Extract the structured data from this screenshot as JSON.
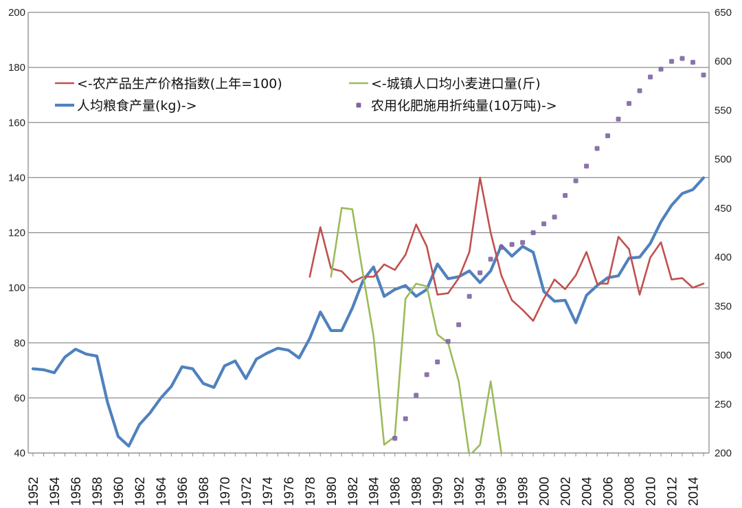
{
  "chart_data": {
    "type": "line",
    "x_range": [
      1952,
      2015
    ],
    "y_left": {
      "range": [
        40,
        200
      ],
      "ticks": [
        40,
        60,
        80,
        100,
        120,
        140,
        160,
        180,
        200
      ]
    },
    "y_right": {
      "range": [
        200,
        650
      ],
      "ticks": [
        200,
        250,
        300,
        350,
        400,
        450,
        500,
        550,
        600,
        650
      ]
    },
    "x_ticks": [
      1952,
      1954,
      1956,
      1958,
      1960,
      1962,
      1964,
      1966,
      1968,
      1970,
      1972,
      1974,
      1976,
      1978,
      1980,
      1982,
      1984,
      1986,
      1988,
      1990,
      1992,
      1994,
      1996,
      1998,
      2000,
      2002,
      2004,
      2006,
      2008,
      2010,
      2012,
      2014
    ],
    "grid": "horizontal",
    "legend_position": "top-left",
    "series": [
      {
        "name": "<-农产品生产价格指数(上年=100)",
        "axis": "left",
        "style": "line",
        "color": "#c0504d",
        "points": [
          [
            1978,
            104
          ],
          [
            1979,
            122
          ],
          [
            1980,
            107
          ],
          [
            1981,
            106
          ],
          [
            1982,
            102
          ],
          [
            1983,
            104
          ],
          [
            1984,
            104
          ],
          [
            1985,
            108.5
          ],
          [
            1986,
            106.5
          ],
          [
            1987,
            112
          ],
          [
            1988,
            123
          ],
          [
            1989,
            115
          ],
          [
            1990,
            97.5
          ],
          [
            1991,
            98
          ],
          [
            1992,
            103.5
          ],
          [
            1993,
            113
          ],
          [
            1994,
            140
          ],
          [
            1995,
            120
          ],
          [
            1996,
            104.5
          ],
          [
            1997,
            95.5
          ],
          [
            1998,
            92
          ],
          [
            1999,
            88
          ],
          [
            2000,
            96
          ],
          [
            2001,
            103
          ],
          [
            2002,
            99.5
          ],
          [
            2003,
            104.5
          ],
          [
            2004,
            113
          ],
          [
            2005,
            101.5
          ],
          [
            2006,
            101.5
          ],
          [
            2007,
            118.5
          ],
          [
            2008,
            114
          ],
          [
            2009,
            97.5
          ],
          [
            2010,
            111
          ],
          [
            2011,
            116.5
          ],
          [
            2012,
            103
          ],
          [
            2013,
            103.5
          ],
          [
            2014,
            100
          ],
          [
            2015,
            101.5
          ]
        ]
      },
      {
        "name": "<-城镇人口均小麦进口量(斤)",
        "axis": "left",
        "style": "line",
        "color": "#9bbb59",
        "points": [
          [
            1980,
            104
          ],
          [
            1981,
            129
          ],
          [
            1982,
            128.5
          ],
          [
            1983,
            105
          ],
          [
            1984,
            82.5
          ],
          [
            1985,
            43
          ],
          [
            1986,
            46
          ],
          [
            1987,
            96
          ],
          [
            1988,
            101.5
          ],
          [
            1989,
            100.5
          ],
          [
            1990,
            83
          ],
          [
            1991,
            80
          ],
          [
            1992,
            66
          ],
          [
            1993,
            39
          ],
          [
            1994,
            43
          ],
          [
            1995,
            66
          ],
          [
            1996,
            40
          ]
        ]
      },
      {
        "name": "人均粮食产量(kg)->",
        "axis": "right",
        "style": "line",
        "color": "#4f81bd",
        "points": [
          [
            1952,
            286
          ],
          [
            1953,
            285
          ],
          [
            1954,
            282
          ],
          [
            1955,
            298
          ],
          [
            1956,
            306
          ],
          [
            1957,
            301
          ],
          [
            1958,
            299
          ],
          [
            1959,
            252
          ],
          [
            1960,
            217
          ],
          [
            1961,
            207
          ],
          [
            1962,
            229
          ],
          [
            1963,
            241
          ],
          [
            1964,
            256
          ],
          [
            1965,
            268
          ],
          [
            1966,
            288
          ],
          [
            1967,
            286
          ],
          [
            1968,
            271
          ],
          [
            1969,
            267
          ],
          [
            1970,
            289
          ],
          [
            1971,
            294
          ],
          [
            1972,
            276
          ],
          [
            1973,
            296
          ],
          [
            1974,
            302
          ],
          [
            1975,
            307
          ],
          [
            1976,
            305
          ],
          [
            1977,
            297
          ],
          [
            1978,
            317
          ],
          [
            1979,
            344
          ],
          [
            1980,
            325
          ],
          [
            1981,
            325
          ],
          [
            1982,
            348
          ],
          [
            1983,
            376
          ],
          [
            1984,
            390
          ],
          [
            1985,
            360
          ],
          [
            1986,
            367
          ],
          [
            1987,
            371
          ],
          [
            1988,
            360
          ],
          [
            1989,
            367
          ],
          [
            1990,
            393
          ],
          [
            1991,
            378
          ],
          [
            1992,
            380
          ],
          [
            1993,
            386
          ],
          [
            1994,
            374
          ],
          [
            1995,
            386
          ],
          [
            1996,
            412
          ],
          [
            1997,
            401
          ],
          [
            1998,
            411
          ],
          [
            1999,
            405
          ],
          [
            2000,
            365
          ],
          [
            2001,
            355
          ],
          [
            2002,
            356
          ],
          [
            2003,
            333
          ],
          [
            2004,
            361
          ],
          [
            2005,
            371
          ],
          [
            2006,
            379
          ],
          [
            2007,
            381
          ],
          [
            2008,
            399
          ],
          [
            2009,
            400
          ],
          [
            2010,
            414
          ],
          [
            2011,
            436
          ],
          [
            2012,
            453
          ],
          [
            2013,
            465
          ],
          [
            2014,
            469
          ],
          [
            2015,
            481
          ]
        ]
      },
      {
        "name": "农用化肥施用折纯量(10万吨)->",
        "axis": "right",
        "style": "markers",
        "color": "#8064a2",
        "points": [
          [
            1986,
            215
          ],
          [
            1987,
            235
          ],
          [
            1988,
            259
          ],
          [
            1989,
            280
          ],
          [
            1990,
            293
          ],
          [
            1991,
            314
          ],
          [
            1992,
            331
          ],
          [
            1993,
            360
          ],
          [
            1994,
            384
          ],
          [
            1995,
            398
          ],
          [
            1996,
            410
          ],
          [
            1997,
            413
          ],
          [
            1998,
            415
          ],
          [
            1999,
            425
          ],
          [
            2000,
            434
          ],
          [
            2001,
            441
          ],
          [
            2002,
            463
          ],
          [
            2003,
            478
          ],
          [
            2004,
            493
          ],
          [
            2005,
            511
          ],
          [
            2006,
            524
          ],
          [
            2007,
            541
          ],
          [
            2008,
            557
          ],
          [
            2009,
            570
          ],
          [
            2010,
            584
          ],
          [
            2011,
            592
          ],
          [
            2012,
            600
          ],
          [
            2013,
            603
          ],
          [
            2014,
            599
          ],
          [
            2015,
            586
          ]
        ]
      }
    ]
  }
}
